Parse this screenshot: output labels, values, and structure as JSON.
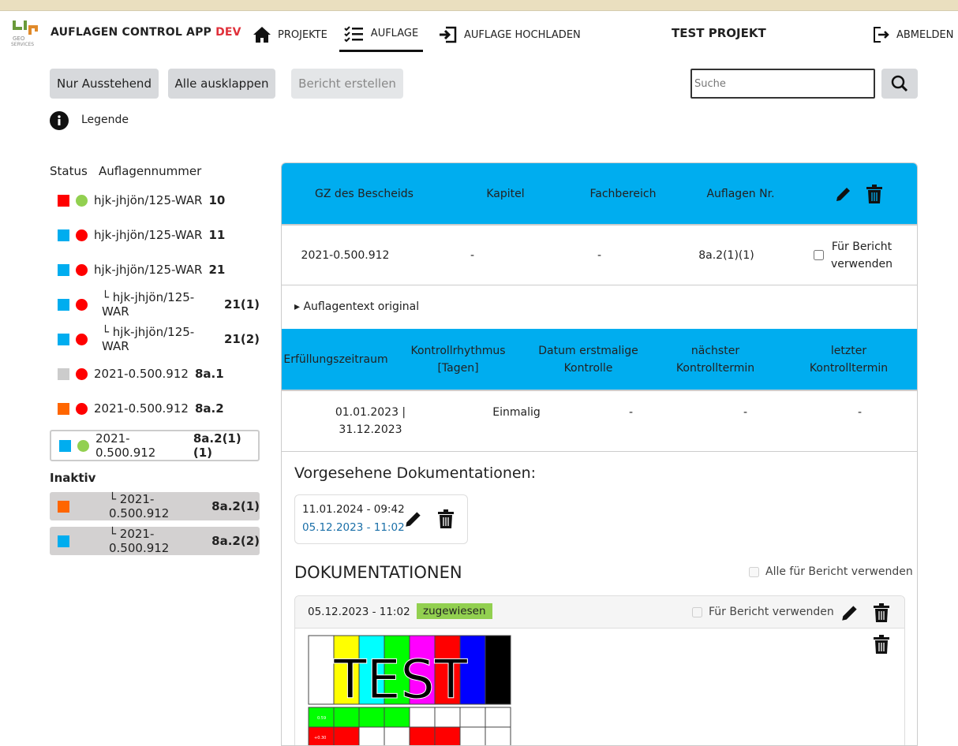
{
  "app": {
    "logo_text": "bp GEO SERVICES",
    "title": "AUFLAGEN CONTROL APP",
    "env": "DEV",
    "project": "TEST PROJEKT"
  },
  "nav": [
    {
      "label": "PROJEKTE",
      "icon": "home-icon"
    },
    {
      "label": "AUFLAGE",
      "icon": "checklist-icon",
      "active": true
    },
    {
      "label": "AUFLAGE HOCHLADEN",
      "icon": "upload-icon"
    }
  ],
  "logout": "ABMELDEN",
  "toolbar": {
    "pending": "Nur Ausstehend",
    "expand": "Alle ausklappen",
    "report": "Bericht erstellen",
    "search_placeholder": "Suche",
    "legend": "Legende"
  },
  "list": {
    "h_status": "Status",
    "h_num": "Auflagennummer",
    "inactive_label": "Inaktiv",
    "items": [
      {
        "status": "#ff0000",
        "dot": "#92d050",
        "name": "hjk-jhjön/125-WAR",
        "num": "10"
      },
      {
        "status": "#00adef",
        "dot": "#ff0000",
        "name": "hjk-jhjön/125-WAR",
        "num": "11"
      },
      {
        "status": "#00adef",
        "dot": "#ff0000",
        "name": "hjk-jhjön/125-WAR",
        "num": "21"
      },
      {
        "status": "#00adef",
        "dot": "#ff0000",
        "name": "└ hjk-jhjön/125-WAR",
        "num": "21(1)"
      },
      {
        "status": "#00adef",
        "dot": "#ff0000",
        "name": "└ hjk-jhjön/125-WAR",
        "num": "21(2)"
      },
      {
        "status": "#cccccc",
        "dot": "#ff0000",
        "name": "2021-0.500.912",
        "num": "8a.1"
      },
      {
        "status": "#ff6600",
        "dot": "#ff0000",
        "name": "2021-0.500.912",
        "num": "8a.2"
      },
      {
        "status": "#00adef",
        "dot": "#92d050",
        "name": "2021-0.500.912",
        "num": "8a.2(1)(1)",
        "selected": true
      }
    ],
    "inactive": [
      {
        "status": "#ff6600",
        "name": "└ 2021-0.500.912",
        "num": "8a.2(1)"
      },
      {
        "status": "#00adef",
        "name": "└ 2021-0.500.912",
        "num": "8a.2(2)"
      }
    ]
  },
  "detail": {
    "h1": [
      "GZ des Bescheids",
      "Kapitel",
      "Fachbereich",
      "Auflagen Nr."
    ],
    "r1": [
      "2021-0.500.912",
      "-",
      "-",
      "8a.2(1)(1)"
    ],
    "use_report": "Für Bericht verwenden",
    "orig_text": "Auflagentext original",
    "h2": [
      "Erfüllungszeitraum",
      "Kontrollrhythmus [Tagen]",
      "Datum erstmalige Kontrolle",
      "nächster Kontrolltermin",
      "letzter Kontrolltermin"
    ],
    "r2": [
      "01.01.2023 | 31.12.2023",
      "Einmalig",
      "-",
      "-",
      "-"
    ],
    "planned_title": "Vorgesehene Dokumentationen:",
    "planned": {
      "date1": "11.01.2024 - 09:42",
      "date2": "05.12.2023 - 11:02"
    },
    "docs_title": "DOKUMENTATIONEN",
    "all_report": "Alle für Bericht verwenden",
    "doc": {
      "date": "05.12.2023 - 11:02",
      "badge": "zugewiesen",
      "use_report": "Für Bericht verwenden",
      "image_text": "TEST",
      "cell1": "0.59",
      "cell2": "+0.30"
    }
  },
  "colors": {
    "accent": "#00adef",
    "badge": "#92d050",
    "link": "#1a6fa8"
  }
}
